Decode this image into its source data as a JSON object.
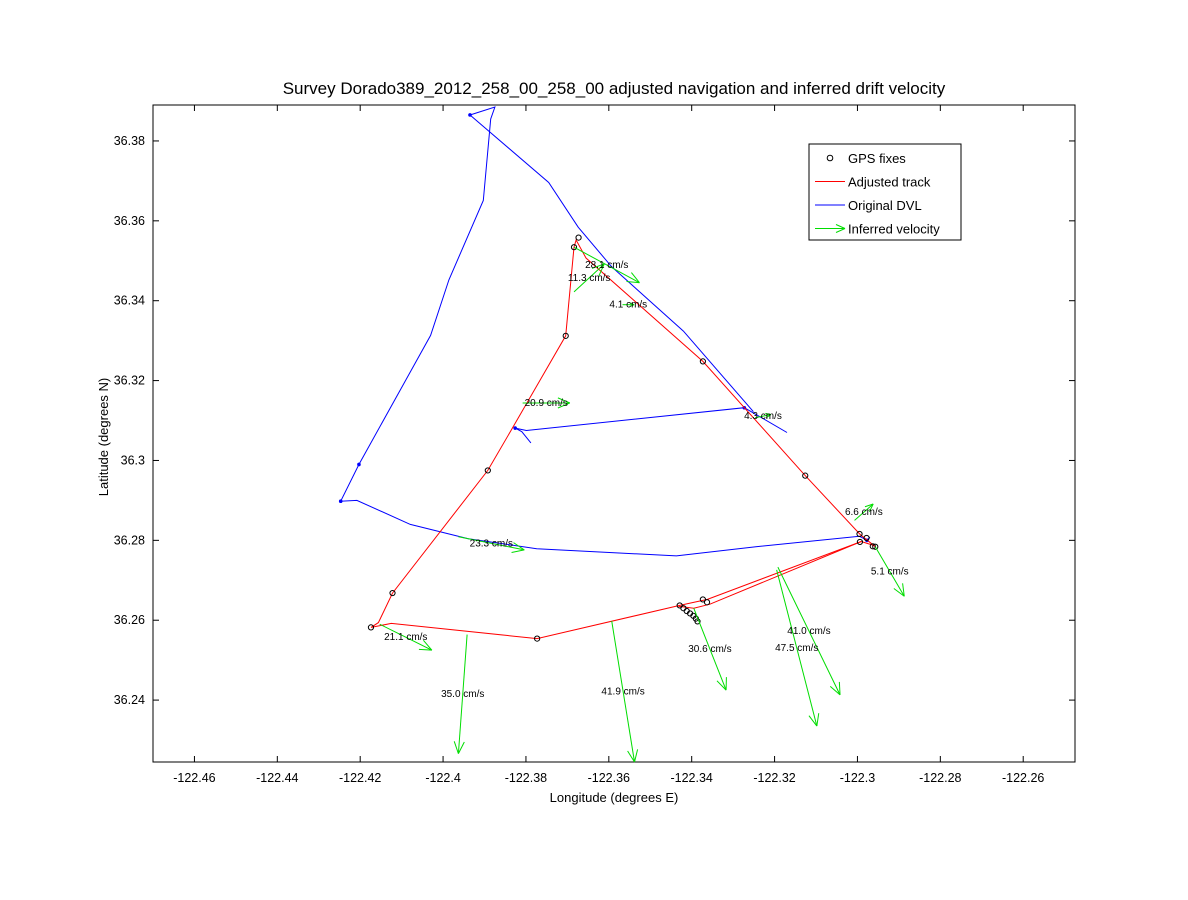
{
  "chart_data": {
    "type": "line",
    "title": "Survey Dorado389_2012_258_00_258_00 adjusted navigation and inferred drift velocity",
    "xlabel": "Longitude (degrees E)",
    "ylabel": "Latitude (degrees N)",
    "xlim": [
      -122.47,
      -122.2475
    ],
    "ylim": [
      36.2245,
      36.389
    ],
    "x_ticks": [
      -122.46,
      -122.44,
      -122.42,
      -122.4,
      -122.38,
      -122.36,
      -122.34,
      -122.32,
      -122.3,
      -122.28,
      -122.26
    ],
    "x_tick_labels": [
      "-122.46",
      "-122.44",
      "-122.42",
      "-122.4",
      "-122.38",
      "-122.36",
      "-122.34",
      "-122.32",
      "-122.3",
      "-122.28",
      "-122.26"
    ],
    "y_ticks": [
      36.24,
      36.26,
      36.28,
      36.3,
      36.32,
      36.34,
      36.36,
      36.38
    ],
    "y_tick_labels": [
      "36.24",
      "36.26",
      "36.28",
      "36.3",
      "36.32",
      "36.34",
      "36.36",
      "36.38"
    ],
    "grid": false,
    "legend_position": "top-right",
    "colors": {
      "gps": "#000000",
      "adjusted": "#ff0000",
      "original": "#0000ff",
      "velocity": "#00dd00"
    },
    "legend": [
      {
        "key": "gps",
        "label": "GPS fixes",
        "marker": "circle"
      },
      {
        "key": "adjusted",
        "label": "Adjusted track",
        "marker": "line"
      },
      {
        "key": "original",
        "label": "Original DVL",
        "marker": "line"
      },
      {
        "key": "velocity",
        "label": "Inferred velocity",
        "marker": "arrow"
      }
    ],
    "original_dvl": [
      [
        -122.3935,
        36.3865
      ],
      [
        -122.3875,
        36.3885
      ],
      [
        -122.3885,
        36.3855
      ],
      [
        -122.3903,
        36.3651
      ],
      [
        -122.3986,
        36.3452
      ],
      [
        -122.403,
        36.3313
      ],
      [
        -122.4203,
        36.299
      ],
      [
        -122.4247,
        36.2898
      ],
      [
        -122.4208,
        36.29
      ],
      [
        -122.4079,
        36.284
      ],
      [
        -122.3939,
        36.2804
      ],
      [
        -122.3774,
        36.2779
      ],
      [
        -122.3437,
        36.2761
      ],
      [
        -122.3245,
        36.2784
      ],
      [
        -122.2995,
        36.281
      ],
      [
        -122.2977,
        36.28
      ],
      [
        -122.297,
        36.2808
      ]
    ],
    "original_dvl_segment_2": [
      [
        -122.3788,
        36.3044
      ],
      [
        -122.381,
        36.3072
      ],
      [
        -122.3826,
        36.3081
      ],
      [
        -122.3799,
        36.3075
      ],
      [
        -122.3273,
        36.3132
      ],
      [
        -122.317,
        36.307
      ]
    ],
    "original_dvl_segment_3": [
      [
        -122.3935,
        36.3865
      ],
      [
        -122.3745,
        36.3696
      ],
      [
        -122.3674,
        36.3584
      ],
      [
        -122.3593,
        36.3485
      ],
      [
        -122.342,
        36.3324
      ],
      [
        -122.3251,
        36.3122
      ]
    ],
    "adjusted_track": [
      [
        -122.4174,
        36.2582
      ],
      [
        -122.4156,
        36.2594
      ],
      [
        -122.4122,
        36.2668
      ],
      [
        -122.3892,
        36.2975
      ],
      [
        -122.3836,
        36.3075
      ],
      [
        -122.3704,
        36.3312
      ],
      [
        -122.3684,
        36.3534
      ],
      [
        -122.3679,
        36.3552
      ],
      [
        -122.3655,
        36.3507
      ],
      [
        -122.3373,
        36.3248
      ],
      [
        -122.3126,
        36.2962
      ],
      [
        -122.2993,
        36.2814
      ],
      [
        -122.2957,
        36.2784
      ],
      [
        -122.2963,
        36.2788
      ],
      [
        -122.2991,
        36.2797
      ],
      [
        -122.3362,
        36.2652
      ],
      [
        -122.3429,
        36.2637
      ],
      [
        -122.3773,
        36.2554
      ],
      [
        -122.4125,
        36.2592
      ],
      [
        -122.4174,
        36.2582
      ]
    ],
    "adjusted_track_segment_2": [
      [
        -122.2991,
        36.2797
      ],
      [
        -122.3356,
        36.264
      ],
      [
        -122.3395,
        36.263
      ],
      [
        -122.3432,
        36.2635
      ]
    ],
    "gps_fixes": [
      [
        -122.4174,
        36.2582
      ],
      [
        -122.4122,
        36.2668
      ],
      [
        -122.3892,
        36.2975
      ],
      [
        -122.3704,
        36.3312
      ],
      [
        -122.3684,
        36.3534
      ],
      [
        -122.3673,
        36.3558
      ],
      [
        -122.3373,
        36.3248
      ],
      [
        -122.3126,
        36.2962
      ],
      [
        -122.2995,
        36.2816
      ],
      [
        -122.2978,
        36.2806
      ],
      [
        -122.2994,
        36.2796
      ],
      [
        -122.2957,
        36.2784
      ],
      [
        -122.2963,
        36.2785
      ],
      [
        -122.3373,
        36.2652
      ],
      [
        -122.3363,
        36.2645
      ],
      [
        -122.3773,
        36.2554
      ],
      [
        -122.3429,
        36.2637
      ],
      [
        -122.342,
        36.263
      ],
      [
        -122.3412,
        36.2623
      ],
      [
        -122.3404,
        36.2617
      ],
      [
        -122.3396,
        36.2611
      ],
      [
        -122.339,
        36.2604
      ],
      [
        -122.3386,
        36.2597
      ]
    ],
    "velocity_vectors": [
      {
        "x0": -122.3684,
        "y0": 36.3534,
        "x1": -122.3526,
        "y1": 36.3445,
        "label": "28.1 cm/s"
      },
      {
        "x0": -122.3684,
        "y0": 36.3422,
        "x1": -122.3611,
        "y1": 36.3492,
        "label": "11.3 cm/s"
      },
      {
        "x0": -122.3567,
        "y0": 36.339,
        "x1": -122.3539,
        "y1": 36.339,
        "label": "4.1 cm/s"
      },
      {
        "x0": -122.3808,
        "y0": 36.3144,
        "x1": -122.3694,
        "y1": 36.3144,
        "label": "20.9 cm/s"
      },
      {
        "x0": -122.3247,
        "y0": 36.3107,
        "x1": -122.3209,
        "y1": 36.3115,
        "label": "4.3 cm/s"
      },
      {
        "x0": -122.3007,
        "y0": 36.285,
        "x1": -122.2962,
        "y1": 36.2891,
        "label": "6.6 cm/s"
      },
      {
        "x0": -122.3963,
        "y0": 36.2809,
        "x1": -122.3804,
        "y1": 36.2776,
        "label": "23.3 cm/s"
      },
      {
        "x0": -122.2957,
        "y0": 36.2784,
        "x1": -122.2887,
        "y1": 36.266,
        "label": "5.1 cm/s"
      },
      {
        "x0": -122.4153,
        "y0": 36.259,
        "x1": -122.4027,
        "y1": 36.2525,
        "label": "21.1 cm/s"
      },
      {
        "x0": -122.3942,
        "y0": 36.2564,
        "x1": -122.3963,
        "y1": 36.2266,
        "label": "35.0 cm/s"
      },
      {
        "x0": -122.3593,
        "y0": 36.2598,
        "x1": -122.3538,
        "y1": 36.2245,
        "label": "41.9 cm/s"
      },
      {
        "x0": -122.3395,
        "y0": 36.263,
        "x1": -122.3317,
        "y1": 36.2425,
        "label": "30.6 cm/s"
      },
      {
        "x0": -122.3192,
        "y0": 36.2733,
        "x1": -122.3042,
        "y1": 36.2413,
        "label": "41.0 cm/s"
      },
      {
        "x0": -122.3195,
        "y0": 36.2726,
        "x1": -122.3098,
        "y1": 36.2335,
        "label": "47.5 cm/s"
      }
    ]
  }
}
